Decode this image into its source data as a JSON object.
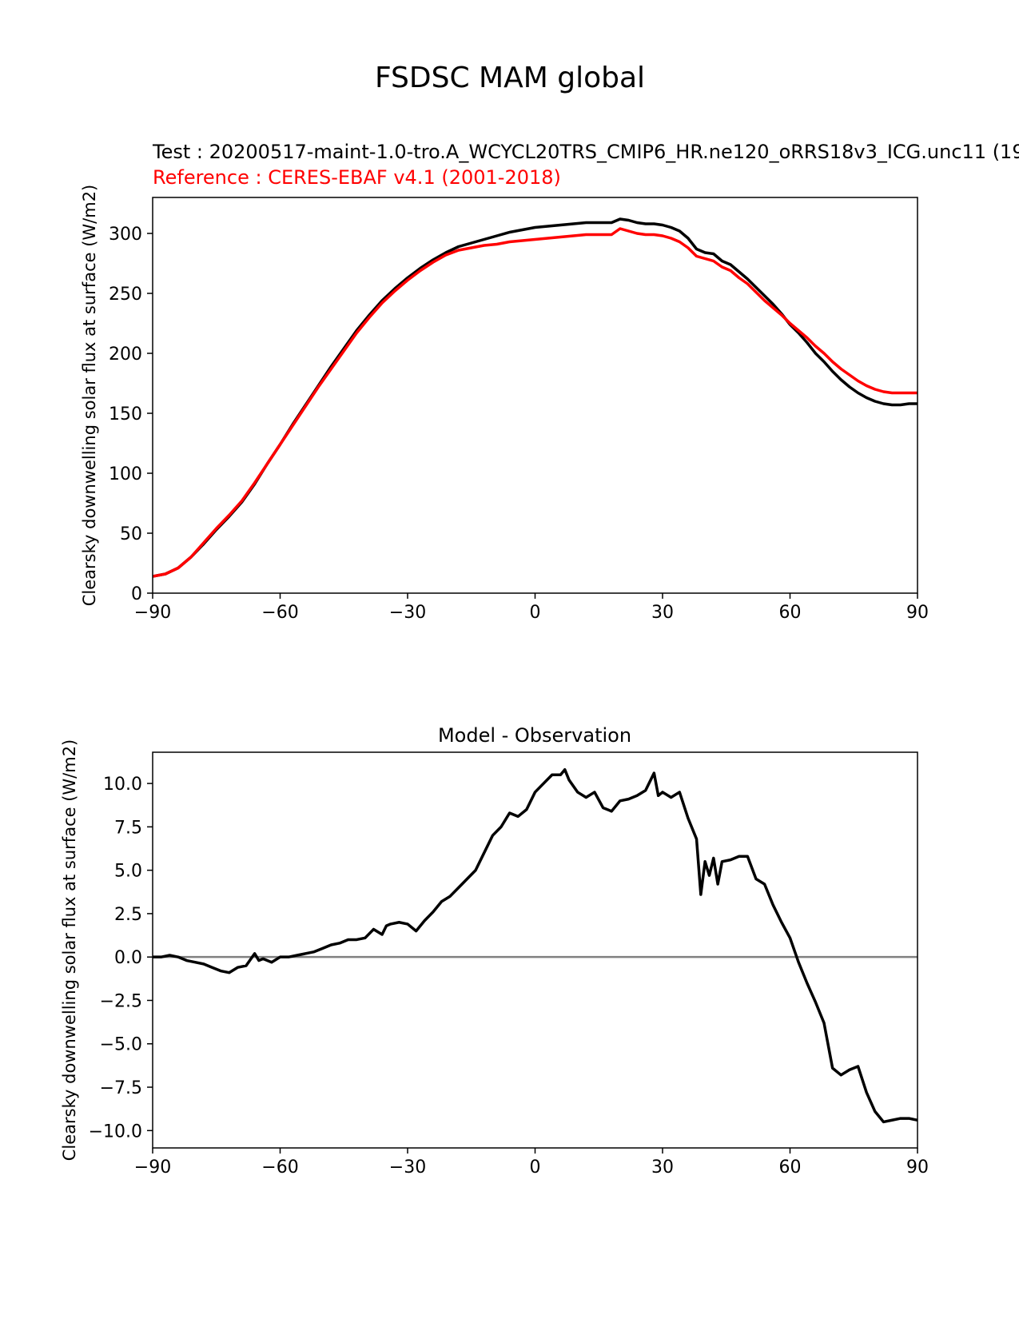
{
  "figure": {
    "suptitle": "FSDSC MAM global"
  },
  "chart_data": [
    {
      "type": "line",
      "test_label": "Test : 20200517-maint-1.0-tro.A_WCYCL20TRS_CMIP6_HR.ne120_oRRS18v3_ICG.unc11 (19",
      "reference_label": "Reference : CERES-EBAF v4.1 (2001-2018)",
      "xlabel": "",
      "ylabel": "Clearsky downwelling solar flux at surface (W/m2)",
      "xlim": [
        -90,
        90
      ],
      "ylim": [
        0,
        330
      ],
      "xticks": [
        -90,
        -60,
        -30,
        0,
        30,
        60,
        90
      ],
      "xtick_labels": [
        "−90",
        "−60",
        "−30",
        "0",
        "30",
        "60",
        "90"
      ],
      "yticks": [
        0,
        50,
        100,
        150,
        200,
        250,
        300
      ],
      "ytick_labels": [
        "0",
        "50",
        "100",
        "150",
        "200",
        "250",
        "300"
      ],
      "series": [
        {
          "color": "#000000",
          "x": [
            -90,
            -87,
            -84,
            -81,
            -78,
            -75,
            -72,
            -69,
            -66,
            -63,
            -60,
            -57,
            -54,
            -51,
            -48,
            -45,
            -42,
            -39,
            -36,
            -33,
            -30,
            -27,
            -24,
            -21,
            -18,
            -15,
            -12,
            -9,
            -6,
            -3,
            0,
            3,
            6,
            9,
            12,
            15,
            18,
            20,
            22,
            24,
            26,
            28,
            30,
            32,
            34,
            36,
            38,
            40,
            42,
            44,
            46,
            48,
            50,
            52,
            54,
            56,
            58,
            60,
            62,
            64,
            66,
            68,
            70,
            72,
            74,
            76,
            78,
            80,
            82,
            84,
            86,
            88,
            90
          ],
          "y": [
            14,
            16,
            21,
            30,
            41,
            53,
            64,
            76,
            91,
            108,
            124,
            141,
            157,
            173,
            189,
            204,
            219,
            232,
            244,
            254,
            263,
            271,
            278,
            284,
            289,
            292,
            295,
            298,
            301,
            303,
            305,
            306,
            307,
            308,
            309,
            309,
            309,
            312,
            311,
            309,
            308,
            308,
            307,
            305,
            302,
            296,
            287,
            284,
            283,
            277,
            274,
            268,
            262,
            255,
            248,
            241,
            233,
            224,
            217,
            209,
            200,
            193,
            185,
            178,
            172,
            167,
            163,
            160,
            158,
            157,
            157,
            158,
            158
          ]
        },
        {
          "color": "#ff0000",
          "x": [
            -90,
            -87,
            -84,
            -81,
            -78,
            -75,
            -72,
            -69,
            -66,
            -63,
            -60,
            -57,
            -54,
            -51,
            -48,
            -45,
            -42,
            -39,
            -36,
            -33,
            -30,
            -27,
            -24,
            -21,
            -18,
            -15,
            -12,
            -9,
            -6,
            -3,
            0,
            3,
            6,
            9,
            12,
            15,
            18,
            20,
            22,
            24,
            26,
            28,
            30,
            32,
            34,
            36,
            38,
            40,
            42,
            44,
            46,
            48,
            50,
            52,
            54,
            56,
            58,
            60,
            62,
            64,
            66,
            68,
            70,
            72,
            74,
            76,
            78,
            80,
            82,
            84,
            86,
            88,
            90
          ],
          "y": [
            14,
            16,
            21,
            30,
            42,
            54,
            65,
            77,
            92,
            108,
            124,
            140,
            156,
            172,
            187,
            202,
            217,
            230,
            242,
            252,
            261,
            269,
            276,
            282,
            286,
            288,
            290,
            291,
            293,
            294,
            295,
            296,
            297,
            298,
            299,
            299,
            299,
            304,
            302,
            300,
            299,
            299,
            298,
            296,
            293,
            288,
            281,
            279,
            277,
            272,
            269,
            263,
            258,
            251,
            244,
            238,
            232,
            225,
            219,
            213,
            206,
            200,
            193,
            187,
            182,
            177,
            173,
            170,
            168,
            167,
            167,
            167,
            167
          ]
        }
      ]
    },
    {
      "type": "line",
      "title": "Model - Observation",
      "xlabel": "",
      "ylabel": "Clearsky downwelling solar flux at surface (W/m2)",
      "xlim": [
        -90,
        90
      ],
      "ylim": [
        -11,
        11.8
      ],
      "xticks": [
        -90,
        -60,
        -30,
        0,
        30,
        60,
        90
      ],
      "xtick_labels": [
        "−90",
        "−60",
        "−30",
        "0",
        "30",
        "60",
        "90"
      ],
      "yticks": [
        10,
        7.5,
        5,
        2.5,
        0,
        -2.5,
        -5,
        -7.5,
        -10
      ],
      "ytick_labels": [
        "10.0",
        "7.5",
        "5.0",
        "2.5",
        "0.0",
        "−2.5",
        "−5.0",
        "−7.5",
        "−10.0"
      ],
      "zero_line_color": "#808080",
      "series": [
        {
          "color": "#000000",
          "x": [
            -90,
            -88,
            -86,
            -84,
            -82,
            -80,
            -78,
            -76,
            -74,
            -72,
            -70,
            -68,
            -66,
            -65,
            -64,
            -62,
            -60,
            -58,
            -56,
            -54,
            -52,
            -50,
            -48,
            -46,
            -44,
            -42,
            -40,
            -38,
            -36,
            -35,
            -34,
            -32,
            -30,
            -28,
            -26,
            -24,
            -22,
            -20,
            -18,
            -16,
            -14,
            -12,
            -10,
            -8,
            -6,
            -4,
            -2,
            0,
            2,
            4,
            6,
            7,
            8,
            10,
            12,
            14,
            16,
            18,
            20,
            22,
            24,
            26,
            28,
            29,
            30,
            32,
            34,
            36,
            38,
            39,
            40,
            41,
            42,
            43,
            44,
            46,
            48,
            50,
            52,
            54,
            56,
            58,
            60,
            62,
            64,
            66,
            68,
            70,
            72,
            74,
            76,
            78,
            80,
            82,
            84,
            86,
            88,
            90
          ],
          "y": [
            0,
            0,
            0.1,
            0,
            -0.2,
            -0.3,
            -0.4,
            -0.6,
            -0.8,
            -0.9,
            -0.6,
            -0.5,
            0.2,
            -0.2,
            -0.1,
            -0.3,
            0,
            0,
            0.1,
            0.2,
            0.3,
            0.5,
            0.7,
            0.8,
            1.0,
            1.0,
            1.1,
            1.6,
            1.3,
            1.8,
            1.9,
            2.0,
            1.9,
            1.5,
            2.1,
            2.6,
            3.2,
            3.5,
            4.0,
            4.5,
            5.0,
            6.0,
            7.0,
            7.5,
            8.3,
            8.1,
            8.5,
            9.5,
            10.0,
            10.5,
            10.5,
            10.8,
            10.2,
            9.5,
            9.2,
            9.5,
            8.6,
            8.4,
            9.0,
            9.1,
            9.3,
            9.6,
            10.6,
            9.3,
            9.5,
            9.2,
            9.5,
            8.0,
            6.8,
            3.6,
            5.5,
            4.7,
            5.7,
            4.2,
            5.5,
            5.6,
            5.8,
            5.8,
            4.5,
            4.2,
            3.0,
            2.0,
            1.1,
            -0.3,
            -1.5,
            -2.6,
            -3.8,
            -6.4,
            -6.8,
            -6.5,
            -6.3,
            -7.8,
            -8.9,
            -9.5,
            -9.4,
            -9.3,
            -9.3,
            -9.4
          ]
        }
      ]
    }
  ]
}
